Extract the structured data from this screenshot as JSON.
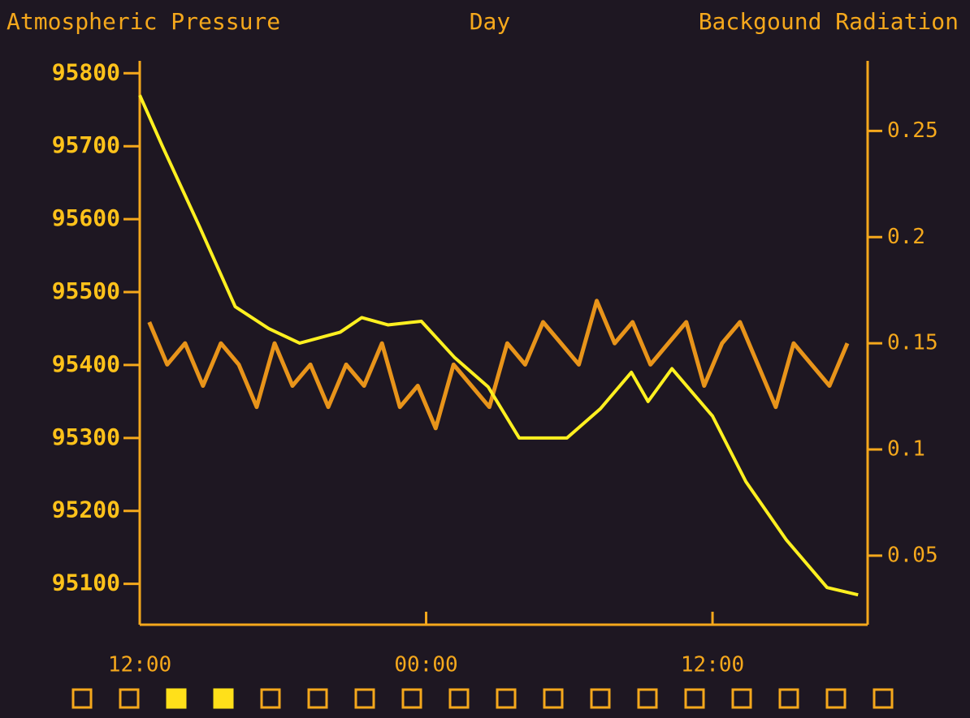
{
  "chart_data": {
    "type": "line",
    "title": "Day",
    "ylabel": "Atmospheric Pressure",
    "y2label": "Backgound Radiation",
    "xlim": [
      0,
      30.5
    ],
    "xticks": [
      {
        "value": 0,
        "label": "12:00"
      },
      {
        "value": 12,
        "label": "00:00"
      },
      {
        "value": 24,
        "label": "12:00"
      }
    ],
    "ylim": [
      95044,
      95817
    ],
    "yticks": [
      95100,
      95200,
      95300,
      95400,
      95500,
      95600,
      95700,
      95800
    ],
    "y2lim": [
      0.0175,
      0.283
    ],
    "y2ticks": [
      0.05,
      0.1,
      0.15,
      0.2,
      0.25
    ],
    "series": [
      {
        "name": "Backgound Radiation",
        "axis": "y2",
        "color": "#e8941a",
        "x": [
          0.4,
          1.15,
          1.9,
          2.65,
          3.4,
          4.15,
          4.9,
          5.65,
          6.4,
          7.15,
          7.9,
          8.65,
          9.4,
          10.15,
          10.9,
          11.65,
          12.4,
          13.15,
          13.9,
          14.65,
          15.4,
          16.15,
          16.9,
          17.65,
          18.4,
          19.15,
          19.9,
          20.65,
          21.4,
          22.15,
          22.9,
          23.65,
          24.4,
          25.15,
          25.9,
          26.65,
          27.4,
          28.15,
          28.9,
          29.65
        ],
        "values": [
          0.16,
          0.14,
          0.15,
          0.13,
          0.15,
          0.14,
          0.12,
          0.15,
          0.13,
          0.14,
          0.12,
          0.14,
          0.13,
          0.15,
          0.12,
          0.13,
          0.11,
          0.14,
          0.13,
          0.12,
          0.15,
          0.14,
          0.16,
          0.15,
          0.14,
          0.17,
          0.15,
          0.16,
          0.14,
          0.15,
          0.16,
          0.13,
          0.15,
          0.16,
          0.14,
          0.12,
          0.15,
          0.14,
          0.13,
          0.15
        ]
      },
      {
        "name": "Atmospheric Pressure",
        "axis": "y",
        "color": "#fff020",
        "x": [
          0,
          0.95,
          2.5,
          4,
          5.4,
          6.7,
          8.4,
          9.3,
          10.4,
          11.8,
          13.2,
          14.6,
          15.9,
          17.9,
          19.3,
          20.6,
          21.3,
          22.3,
          24,
          25.4,
          27.1,
          28.8,
          30.1
        ],
        "values": [
          95770,
          95700,
          95590,
          95480,
          95450,
          95430,
          95445,
          95465,
          95455,
          95460,
          95410,
          95370,
          95300,
          95300,
          95340,
          95390,
          95350,
          95395,
          95330,
          95240,
          95160,
          95095,
          95085
        ]
      }
    ]
  }
}
